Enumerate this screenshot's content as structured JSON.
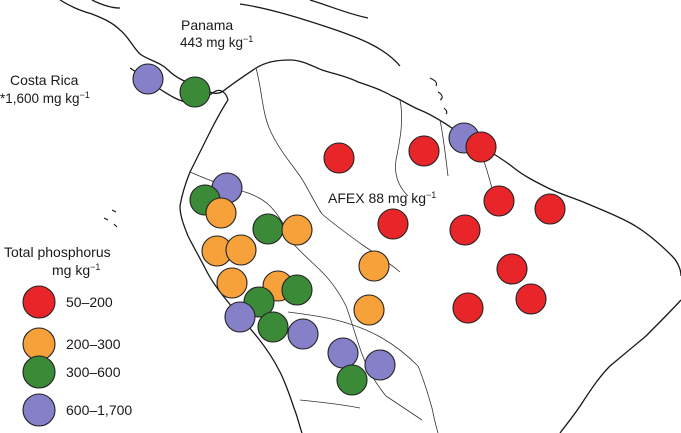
{
  "annotations": {
    "panama_name": "Panama",
    "panama_value": "443 mg kg",
    "costa_rica_name": "Costa Rica",
    "costa_rica_value": "*1,600 mg kg",
    "afex_value": "AFEX 88 mg kg",
    "unit_superscript": "−1"
  },
  "legend": {
    "title_line1": "Total phosphorus",
    "title_line2": "mg kg",
    "title_superscript": "−1",
    "items": [
      {
        "label": "50–200",
        "color": "#e8262a"
      },
      {
        "label": "200–300",
        "color": "#f7a13b"
      },
      {
        "label": "300–600",
        "color": "#3a8a38"
      },
      {
        "label": "600–1,700",
        "color": "#8580c8"
      }
    ]
  },
  "sites": [
    {
      "class": 3,
      "region": "costa-rica"
    },
    {
      "class": 2,
      "region": "panama"
    },
    {
      "class": 3,
      "region": "guyana"
    },
    {
      "class": 0,
      "region": "venezuela"
    },
    {
      "class": 0,
      "region": "guyana"
    },
    {
      "class": 0,
      "region": "suriname"
    },
    {
      "class": 0,
      "region": "amazon-north"
    },
    {
      "class": 0,
      "region": "amazon-north"
    },
    {
      "class": 0,
      "region": "amazon-central"
    },
    {
      "class": 0,
      "region": "amazon-central"
    },
    {
      "class": 0,
      "region": "amazon-east"
    },
    {
      "class": 0,
      "region": "amazon-east"
    },
    {
      "class": 0,
      "region": "amazon-south"
    },
    {
      "class": 1,
      "region": "amazon-central"
    },
    {
      "class": 1,
      "region": "amazon-south"
    },
    {
      "class": 3,
      "region": "ecuador"
    },
    {
      "class": 2,
      "region": "ecuador"
    },
    {
      "class": 1,
      "region": "ecuador"
    },
    {
      "class": 2,
      "region": "colombia"
    },
    {
      "class": 1,
      "region": "colombia"
    },
    {
      "class": 1,
      "region": "peru-north"
    },
    {
      "class": 1,
      "region": "peru-north"
    },
    {
      "class": 1,
      "region": "peru-central"
    },
    {
      "class": 1,
      "region": "peru-central"
    },
    {
      "class": 2,
      "region": "peru-central"
    },
    {
      "class": 2,
      "region": "peru-central"
    },
    {
      "class": 3,
      "region": "peru-south"
    },
    {
      "class": 2,
      "region": "peru-south"
    },
    {
      "class": 3,
      "region": "peru-south"
    },
    {
      "class": 3,
      "region": "bolivia"
    },
    {
      "class": 3,
      "region": "bolivia"
    },
    {
      "class": 2,
      "region": "bolivia"
    }
  ]
}
